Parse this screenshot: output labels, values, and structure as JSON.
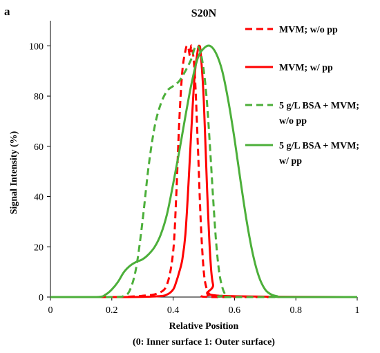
{
  "panel_label": "a",
  "chart_data": {
    "type": "line",
    "title": "S20N",
    "xlabel": "Relative Position",
    "xlabel_sub": "(0: Inner surface 1: Outer surface)",
    "ylabel": "Signal Intensity (%)",
    "xlim": [
      0,
      1
    ],
    "ylim": [
      0,
      110
    ],
    "xticks": [
      0,
      0.2,
      0.4,
      0.6,
      0.8,
      1
    ],
    "xtick_labels": [
      "0",
      "0.2",
      "0.4",
      "0.6",
      "0.8",
      "1"
    ],
    "yticks": [
      0,
      20,
      40,
      60,
      80,
      100
    ],
    "ytick_labels": [
      "0",
      "20",
      "40",
      "60",
      "80",
      "100"
    ],
    "grid": false,
    "legend_position": "right",
    "series": [
      {
        "name": "MVM; w/o pp",
        "color": "#ff0000",
        "dash": "dashed",
        "x": [
          0,
          0.2,
          0.3,
          0.35,
          0.38,
          0.4,
          0.41,
          0.42,
          0.43,
          0.44,
          0.445,
          0.45,
          0.455,
          0.46,
          0.47,
          0.48,
          0.49,
          0.5,
          0.51,
          0.52,
          0.53,
          1
        ],
        "y": [
          0,
          0,
          0.5,
          1.5,
          5,
          18,
          40,
          70,
          90,
          98,
          100,
          99,
          96,
          100,
          90,
          62,
          30,
          10,
          3,
          1,
          0,
          0
        ]
      },
      {
        "name": "MVM; w/ pp",
        "color": "#ff0000",
        "dash": "solid",
        "x": [
          0,
          0.25,
          0.35,
          0.38,
          0.4,
          0.41,
          0.42,
          0.43,
          0.44,
          0.45,
          0.46,
          0.47,
          0.48,
          0.485,
          0.49,
          0.5,
          0.51,
          0.52,
          0.53,
          0.55,
          1
        ],
        "y": [
          0,
          0,
          0.3,
          1,
          3,
          6,
          10,
          15,
          25,
          45,
          68,
          88,
          98,
          100,
          97,
          78,
          45,
          18,
          5,
          0.5,
          0
        ]
      },
      {
        "name": "5 g/L BSA + MVM; w/o pp",
        "color": "#4caf3a",
        "dash": "dashed",
        "x": [
          0,
          0.2,
          0.24,
          0.26,
          0.28,
          0.3,
          0.32,
          0.34,
          0.36,
          0.38,
          0.4,
          0.42,
          0.44,
          0.46,
          0.47,
          0.48,
          0.49,
          0.5,
          0.51,
          0.52,
          0.53,
          0.54,
          0.55,
          0.56,
          0.57,
          0.58,
          1
        ],
        "y": [
          0,
          0,
          0.5,
          3,
          12,
          30,
          52,
          68,
          77,
          82,
          84,
          86,
          90,
          95,
          99,
          100,
          97,
          90,
          78,
          60,
          40,
          22,
          10,
          4,
          1,
          0,
          0
        ]
      },
      {
        "name": "5 g/L BSA + MVM; w/ pp",
        "color": "#4caf3a",
        "dash": "solid",
        "x": [
          0,
          0.15,
          0.18,
          0.2,
          0.22,
          0.24,
          0.26,
          0.28,
          0.3,
          0.32,
          0.34,
          0.36,
          0.38,
          0.4,
          0.42,
          0.44,
          0.46,
          0.48,
          0.5,
          0.52,
          0.54,
          0.56,
          0.58,
          0.6,
          0.62,
          0.64,
          0.66,
          0.68,
          0.7,
          0.72,
          0.74,
          0.76,
          1
        ],
        "y": [
          0,
          0,
          1,
          3,
          6,
          10,
          12.5,
          14,
          15,
          17,
          20,
          25,
          33,
          45,
          58,
          72,
          85,
          95,
          99,
          100,
          97,
          90,
          78,
          63,
          46,
          30,
          17,
          8,
          3,
          1,
          0.3,
          0,
          0
        ]
      }
    ]
  }
}
